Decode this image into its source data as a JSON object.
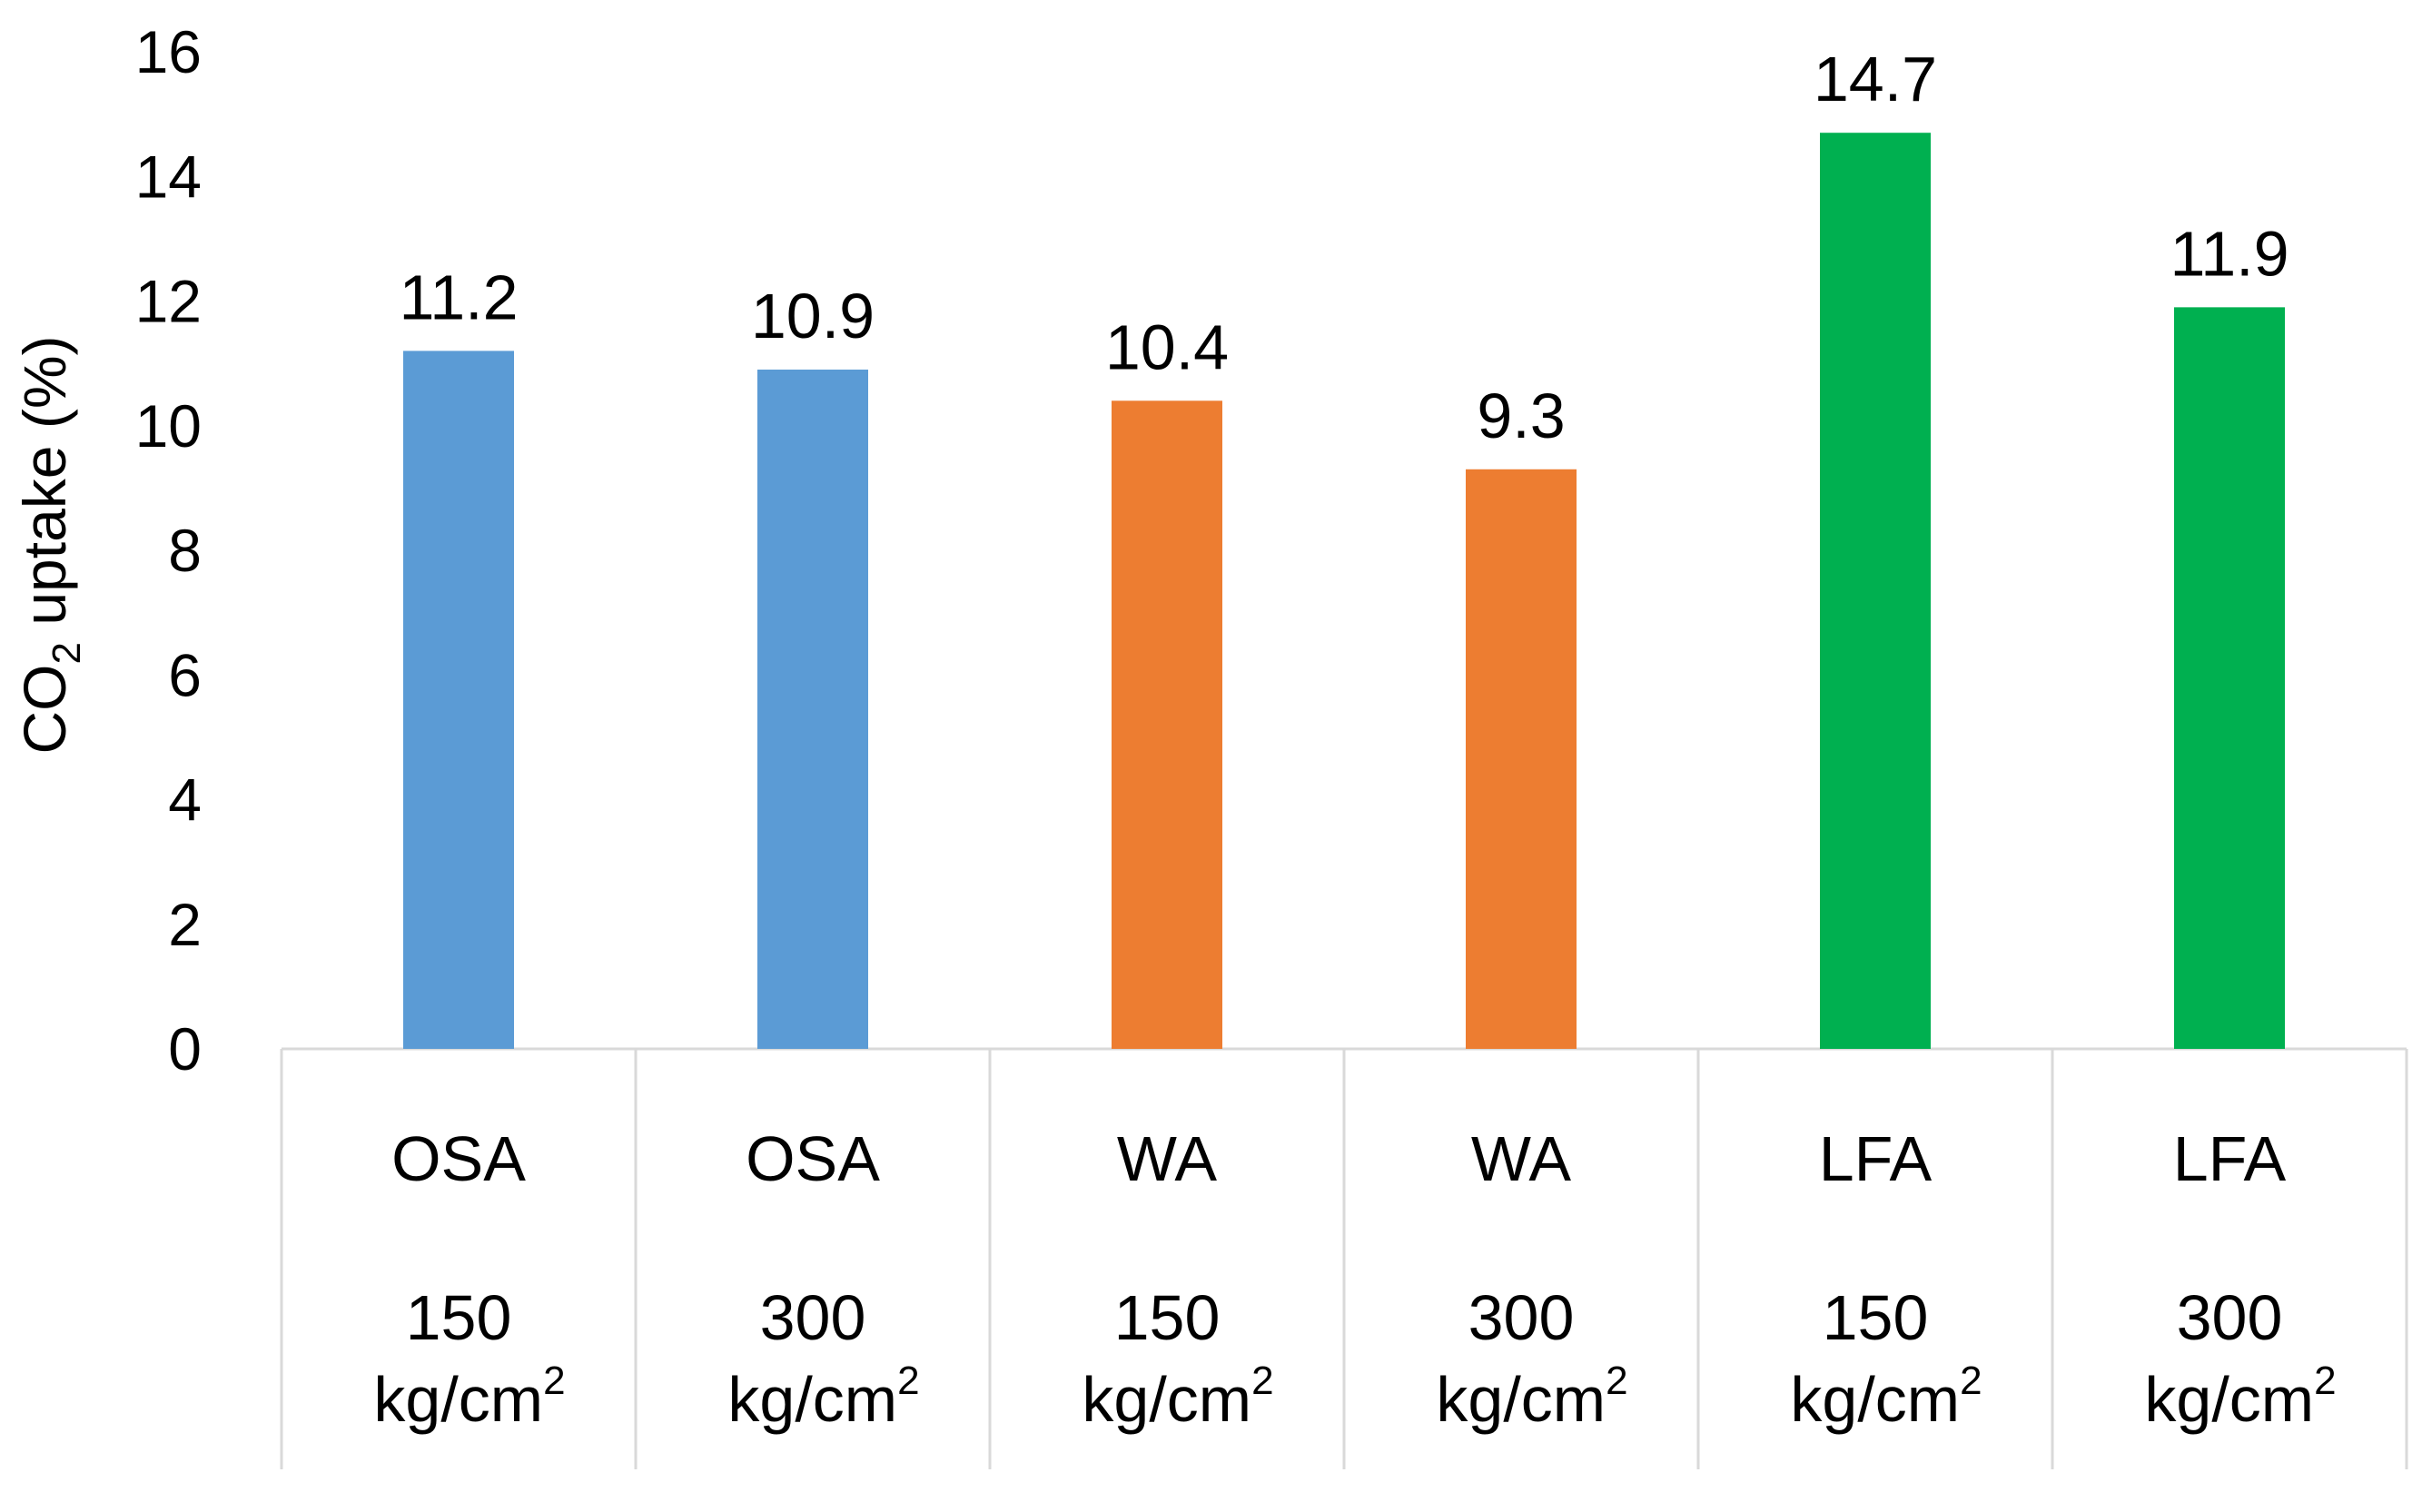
{
  "chart_data": {
    "type": "bar",
    "title": "",
    "xlabel": "",
    "ylabel": {
      "prefix": "CO",
      "subscript": "2",
      "suffix": " uptake (%)"
    },
    "ylim": [
      0,
      16
    ],
    "yticks": [
      0,
      2,
      4,
      6,
      8,
      10,
      12,
      14,
      16
    ],
    "grid": false,
    "legend": "none",
    "categories": [
      {
        "group": "OSA",
        "pressure": "150",
        "unit": "kg/cm",
        "unit_sup": "2"
      },
      {
        "group": "OSA",
        "pressure": "300",
        "unit": "kg/cm",
        "unit_sup": "2"
      },
      {
        "group": "WA",
        "pressure": "150",
        "unit": "kg/cm",
        "unit_sup": "2"
      },
      {
        "group": "WA",
        "pressure": "300",
        "unit": "kg/cm",
        "unit_sup": "2"
      },
      {
        "group": "LFA",
        "pressure": "150",
        "unit": "kg/cm",
        "unit_sup": "2"
      },
      {
        "group": "LFA",
        "pressure": "300",
        "unit": "kg/cm",
        "unit_sup": "2"
      }
    ],
    "values": [
      11.2,
      10.9,
      10.4,
      9.3,
      14.7,
      11.9
    ],
    "data_labels": [
      "11.2",
      "10.9",
      "10.4",
      "9.3",
      "14.7",
      "11.9"
    ],
    "colors": [
      "#5b9bd5",
      "#5b9bd5",
      "#ed7d31",
      "#ed7d31",
      "#00b050",
      "#00b050"
    ]
  }
}
